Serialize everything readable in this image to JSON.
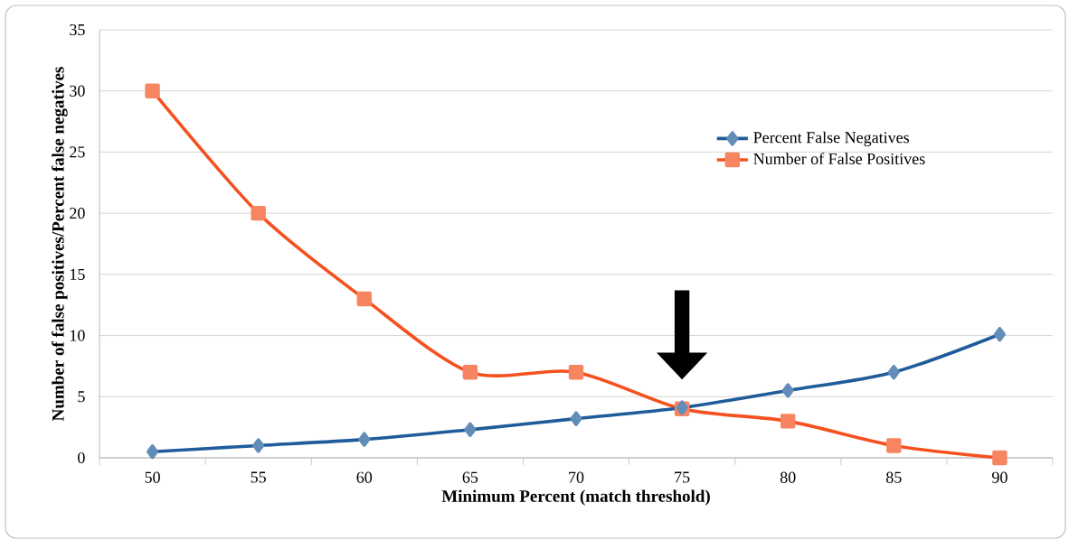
{
  "chart_data": {
    "type": "line",
    "xlabel": "Minimum Percent (match threshold)",
    "ylabel": "Number of false positives/Percent false negatives",
    "categories": [
      "50",
      "55",
      "60",
      "65",
      "70",
      "75",
      "80",
      "85",
      "90"
    ],
    "series": [
      {
        "name": "Percent False Negatives",
        "color": "#1f5c99",
        "marker": "diamond",
        "values": [
          0.5,
          1.0,
          1.5,
          2.3,
          3.2,
          4.1,
          5.5,
          7.0,
          10.1
        ]
      },
      {
        "name": "Number of False Positives",
        "color": "#f4511e",
        "marker": "square",
        "values": [
          30,
          20,
          13,
          7,
          7,
          4,
          3,
          1,
          0
        ]
      }
    ],
    "ylim": [
      0,
      35
    ],
    "yticks": [
      0,
      5,
      10,
      15,
      20,
      25,
      30,
      35
    ],
    "grid": "y",
    "legend": "top right",
    "line_style": "solid"
  }
}
